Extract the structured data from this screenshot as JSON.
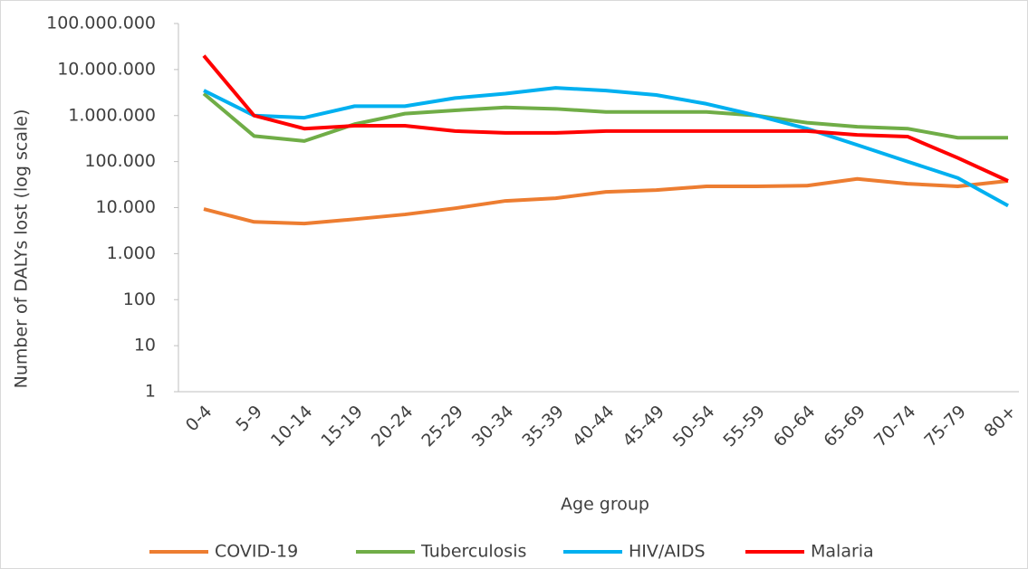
{
  "chart_data": {
    "type": "line",
    "y_label": "Number of DALYs lost (log scale)",
    "x_label": "Age group",
    "categories": [
      "0-4",
      "5-9",
      "10-14",
      "15-19",
      "20-24",
      "25-29",
      "30-34",
      "35-39",
      "40-44",
      "45-49",
      "50-54",
      "55-59",
      "60-64",
      "65-69",
      "70-74",
      "75-79",
      "80+"
    ],
    "series": [
      {
        "name": "COVID-19",
        "color": "#ed7d31",
        "values": [
          9300,
          4900,
          4500,
          5600,
          7100,
          9700,
          14000,
          16000,
          22000,
          24000,
          29000,
          29000,
          30000,
          42000,
          33000,
          29000,
          38000
        ]
      },
      {
        "name": "Tuberculosis",
        "color": "#70ad47",
        "values": [
          3000000,
          360000,
          280000,
          650000,
          1100000,
          1300000,
          1500000,
          1400000,
          1200000,
          1200000,
          1200000,
          1000000,
          700000,
          570000,
          520000,
          330000,
          330000
        ]
      },
      {
        "name": "HIV/AIDS",
        "color": "#00b0f0",
        "values": [
          3500000,
          1000000,
          900000,
          1600000,
          1600000,
          2400000,
          3000000,
          4000000,
          3500000,
          2800000,
          1800000,
          1000000,
          520000,
          230000,
          100000,
          44000,
          11000
        ]
      },
      {
        "name": "Malaria",
        "color": "#ff0000",
        "values": [
          20000000,
          1000000,
          520000,
          600000,
          600000,
          460000,
          420000,
          420000,
          460000,
          460000,
          460000,
          460000,
          460000,
          380000,
          350000,
          120000,
          38000
        ]
      }
    ],
    "ylim": [
      1,
      100000000
    ],
    "yticks": [
      1,
      10,
      100,
      {
        "value": 1000,
        "label": "1.000"
      },
      {
        "value": 10000,
        "label": "10.000"
      },
      {
        "value": 100000,
        "label": "100.000"
      },
      {
        "value": 1000000,
        "label": "1.000.000"
      },
      {
        "value": 10000000,
        "label": "10.000.000"
      },
      {
        "value": 100000000,
        "label": "100.000.000"
      }
    ],
    "log_scale": true,
    "grid": false,
    "legend": "bottom"
  }
}
